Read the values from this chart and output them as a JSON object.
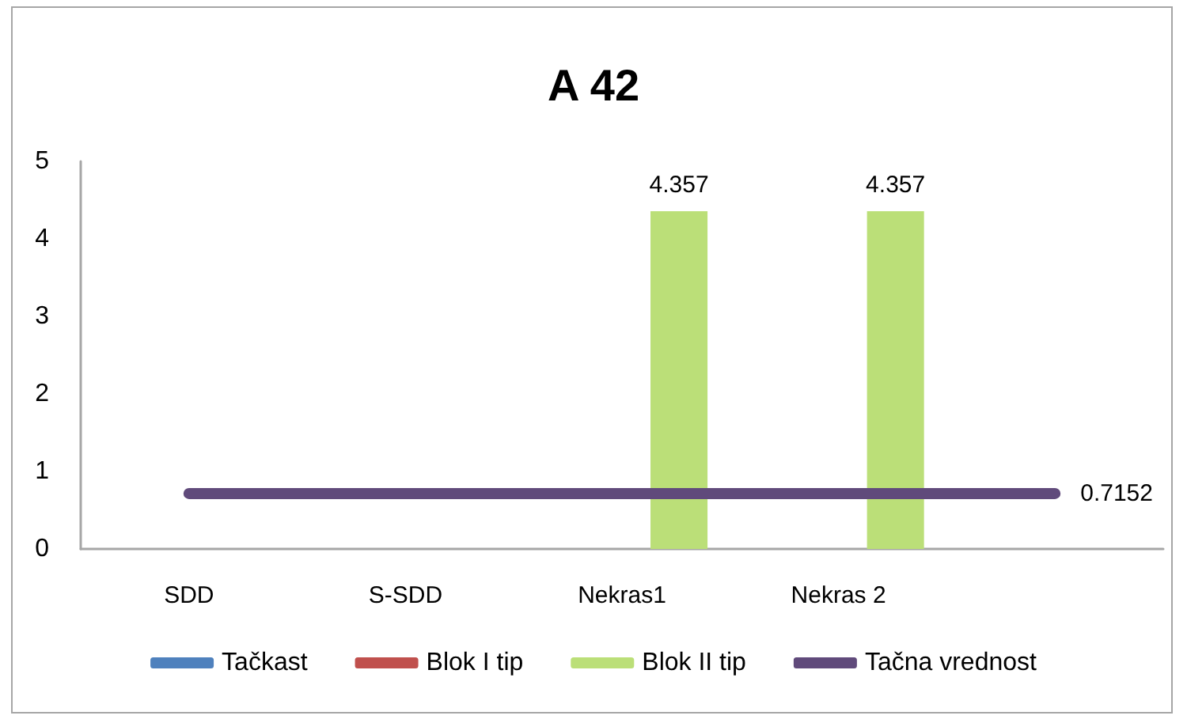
{
  "chart_data": {
    "type": "bar",
    "title": "A 42",
    "categories": [
      "SDD",
      "S-SDD",
      "Nekras1",
      "Nekras 2",
      null
    ],
    "series": [
      {
        "name": "Tačkast",
        "color": "#4f81bd",
        "values": [
          null,
          null,
          null,
          null,
          null
        ]
      },
      {
        "name": "Blok I tip",
        "color": "#c0504d",
        "values": [
          null,
          null,
          null,
          null,
          null
        ]
      },
      {
        "name": "Blok II tip",
        "color": "#bbdf78",
        "values": [
          null,
          null,
          4.357,
          4.357,
          null
        ],
        "value_labels": [
          null,
          null,
          "4.357",
          "4.357",
          null
        ]
      },
      {
        "name": "Tačna vrednost",
        "type": "line",
        "color": "#604a7b",
        "values": [
          0.7152,
          0.7152,
          0.7152,
          0.7152,
          0.7152
        ],
        "value_labels": [
          null,
          null,
          null,
          null,
          "0.7152"
        ]
      }
    ],
    "ylim": [
      0,
      5
    ],
    "yticks": [
      0,
      1,
      2,
      3,
      4,
      5
    ],
    "grid": false,
    "legend": "bottom",
    "marker": "none",
    "line_style": "solid"
  }
}
